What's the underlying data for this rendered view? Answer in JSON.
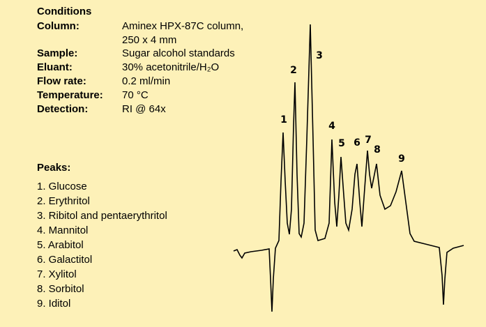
{
  "conditions": {
    "title": "Conditions",
    "rows": [
      {
        "label": "Column:",
        "value": "Aminex HPX-87C column,"
      },
      {
        "label": "",
        "value": "250 x 4 mm"
      },
      {
        "label": "Sample:",
        "value": "Sugar alcohol standards"
      },
      {
        "label": "Eluant:",
        "value": "30% acetonitrile/H₂O"
      },
      {
        "label": "Flow rate:",
        "value": "0.2 ml/min"
      },
      {
        "label": "Temperature:",
        "value": "70 °C"
      },
      {
        "label": "Detection:",
        "value": "RI @ 64x"
      }
    ]
  },
  "peaks": {
    "title": "Peaks:",
    "items": [
      "1. Glucose",
      "2. Erythritol",
      "3. Ribitol and pentaerythritol",
      "4. Mannitol",
      "5. Arabitol",
      "6. Galactitol",
      "7. Xylitol",
      "8. Sorbitol",
      "9. Iditol"
    ]
  },
  "peak_labels": [
    "1",
    "2",
    "3",
    "4",
    "5",
    "6",
    "7",
    "8",
    "9"
  ]
}
